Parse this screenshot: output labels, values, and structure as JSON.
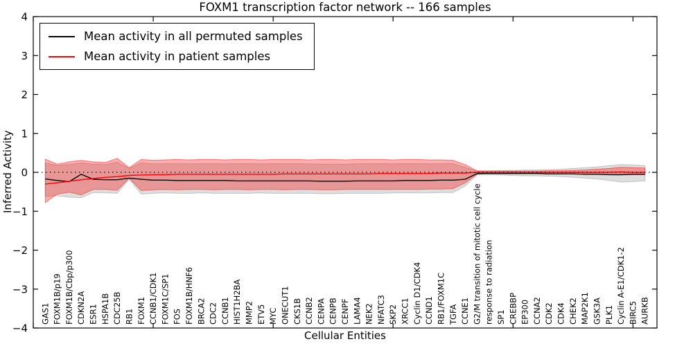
{
  "chart_data": {
    "type": "line",
    "title": "FOXM1 transcription factor network -- 166 samples",
    "xlabel": "Cellular Entities",
    "ylabel": "Inferred Activity",
    "ylim": [
      -4,
      4
    ],
    "xlim": [
      0,
      52
    ],
    "yticks": [
      -4,
      -3,
      -2,
      -1,
      0,
      1,
      2,
      3,
      4
    ],
    "yticklabels": [
      "−4",
      "−3",
      "−2",
      "−1",
      "0",
      "1",
      "2",
      "3",
      "4"
    ],
    "xticks": [
      0,
      10,
      20,
      30,
      40,
      50
    ],
    "grid": false,
    "zero_line": true,
    "legend_position": "upper left",
    "background_color": "#ffffff",
    "categories": [
      "GAS1",
      "FOXM1B/p19",
      "FOXM1B/Cbp/p300",
      "CDKN2A",
      "ESR1",
      "HSPA1B",
      "CDC25B",
      "RB1",
      "FOXM1",
      "CCNB1/CDK1",
      "FOXM1C/SP1",
      "FOS",
      "FOXM1B/HNF6",
      "BRCA2",
      "CDC2",
      "CCNB1",
      "HIST1H2BA",
      "MMP2",
      "ETV5",
      "MYC",
      "ONECUT1",
      "CKS1B",
      "CCNB2",
      "CENPA",
      "CENPB",
      "CENPF",
      "LAMA4",
      "NEK2",
      "NFATC3",
      "SKP2",
      "XRCC1",
      "Cyclin D1/CDK4",
      "CCND1",
      "RB1/FOXM1C",
      "TGFA",
      "CCNE1",
      "G2/M transition of mitotic cell cycle",
      "response to radiation",
      "SP1",
      "CREBBP",
      "EP300",
      "CCNA2",
      "CDK2",
      "CDK4",
      "CHEK2",
      "MAP2K1",
      "GSK3A",
      "PLK1",
      "Cyclin A-E1/CDK1-2",
      "BIRC5",
      "AURKB"
    ],
    "series": [
      {
        "name": "Mean activity in all permuted samples",
        "color": "#000000",
        "band_color": "rgba(0,0,0,0.13)",
        "band_edge_color": "rgba(0,0,0,0.18)",
        "values": [
          -0.17,
          -0.21,
          -0.24,
          -0.05,
          -0.18,
          -0.19,
          -0.19,
          -0.15,
          -0.18,
          -0.2,
          -0.2,
          -0.21,
          -0.21,
          -0.21,
          -0.21,
          -0.21,
          -0.22,
          -0.22,
          -0.22,
          -0.22,
          -0.22,
          -0.22,
          -0.22,
          -0.23,
          -0.23,
          -0.23,
          -0.22,
          -0.22,
          -0.22,
          -0.22,
          -0.21,
          -0.21,
          -0.21,
          -0.2,
          -0.2,
          -0.18,
          -0.03,
          -0.03,
          -0.03,
          -0.03,
          -0.03,
          -0.03,
          -0.04,
          -0.04,
          -0.04,
          -0.05,
          -0.05,
          -0.06,
          -0.06,
          -0.05,
          -0.05
        ],
        "band_upper": [
          0.24,
          0.18,
          0.2,
          0.24,
          0.21,
          0.2,
          0.26,
          0.1,
          0.24,
          0.22,
          0.22,
          0.22,
          0.22,
          0.22,
          0.22,
          0.22,
          0.22,
          0.22,
          0.22,
          0.22,
          0.22,
          0.22,
          0.22,
          0.21,
          0.21,
          0.21,
          0.22,
          0.22,
          0.22,
          0.22,
          0.22,
          0.22,
          0.22,
          0.22,
          0.22,
          0.13,
          0.03,
          0.04,
          0.05,
          0.05,
          0.06,
          0.06,
          0.07,
          0.08,
          0.1,
          0.12,
          0.14,
          0.17,
          0.2,
          0.19,
          0.17
        ],
        "band_lower": [
          -0.62,
          -0.6,
          -0.64,
          -0.65,
          -0.52,
          -0.53,
          -0.54,
          -0.18,
          -0.56,
          -0.54,
          -0.53,
          -0.54,
          -0.54,
          -0.53,
          -0.54,
          -0.54,
          -0.54,
          -0.54,
          -0.53,
          -0.54,
          -0.54,
          -0.54,
          -0.54,
          -0.55,
          -0.55,
          -0.54,
          -0.54,
          -0.54,
          -0.54,
          -0.53,
          -0.53,
          -0.53,
          -0.53,
          -0.52,
          -0.52,
          -0.35,
          -0.06,
          -0.06,
          -0.07,
          -0.08,
          -0.09,
          -0.09,
          -0.1,
          -0.11,
          -0.13,
          -0.15,
          -0.17,
          -0.21,
          -0.25,
          -0.24,
          -0.22
        ]
      },
      {
        "name": "Mean activity in patient samples",
        "color": "#ff0000",
        "band_color": "rgba(255,0,0,0.32)",
        "band_edge_color": "rgba(255,0,0,0.45)",
        "values": [
          -0.3,
          -0.27,
          -0.23,
          -0.19,
          -0.16,
          -0.13,
          -0.11,
          -0.08,
          -0.07,
          -0.06,
          -0.06,
          -0.05,
          -0.05,
          -0.05,
          -0.05,
          -0.05,
          -0.05,
          -0.05,
          -0.05,
          -0.05,
          -0.04,
          -0.04,
          -0.04,
          -0.04,
          -0.04,
          -0.04,
          -0.04,
          -0.04,
          -0.03,
          -0.03,
          -0.03,
          -0.03,
          -0.03,
          -0.02,
          -0.02,
          -0.02,
          0.0,
          0.0,
          0.0,
          0.0,
          0.0,
          0.0,
          0.0,
          0.0,
          0.0,
          0.0,
          0.0,
          0.0,
          0.01,
          0.0,
          0.0
        ],
        "band_upper": [
          0.34,
          0.21,
          0.27,
          0.31,
          0.27,
          0.25,
          0.36,
          0.12,
          0.33,
          0.31,
          0.32,
          0.33,
          0.32,
          0.33,
          0.33,
          0.32,
          0.33,
          0.33,
          0.32,
          0.33,
          0.33,
          0.33,
          0.32,
          0.33,
          0.33,
          0.32,
          0.33,
          0.33,
          0.33,
          0.32,
          0.33,
          0.33,
          0.32,
          0.32,
          0.31,
          0.2,
          0.04,
          0.03,
          0.03,
          0.03,
          0.03,
          0.03,
          0.04,
          0.04,
          0.05,
          0.06,
          0.08,
          0.1,
          0.13,
          0.12,
          0.11
        ],
        "band_lower": [
          -0.78,
          -0.56,
          -0.51,
          -0.58,
          -0.44,
          -0.44,
          -0.46,
          -0.15,
          -0.47,
          -0.45,
          -0.44,
          -0.45,
          -0.44,
          -0.44,
          -0.45,
          -0.44,
          -0.44,
          -0.45,
          -0.44,
          -0.44,
          -0.45,
          -0.44,
          -0.44,
          -0.45,
          -0.45,
          -0.44,
          -0.44,
          -0.44,
          -0.44,
          -0.44,
          -0.44,
          -0.44,
          -0.43,
          -0.43,
          -0.42,
          -0.27,
          -0.05,
          -0.03,
          -0.03,
          -0.03,
          -0.03,
          -0.03,
          -0.04,
          -0.04,
          -0.04,
          -0.05,
          -0.05,
          -0.06,
          -0.07,
          -0.06,
          -0.06
        ]
      }
    ]
  }
}
